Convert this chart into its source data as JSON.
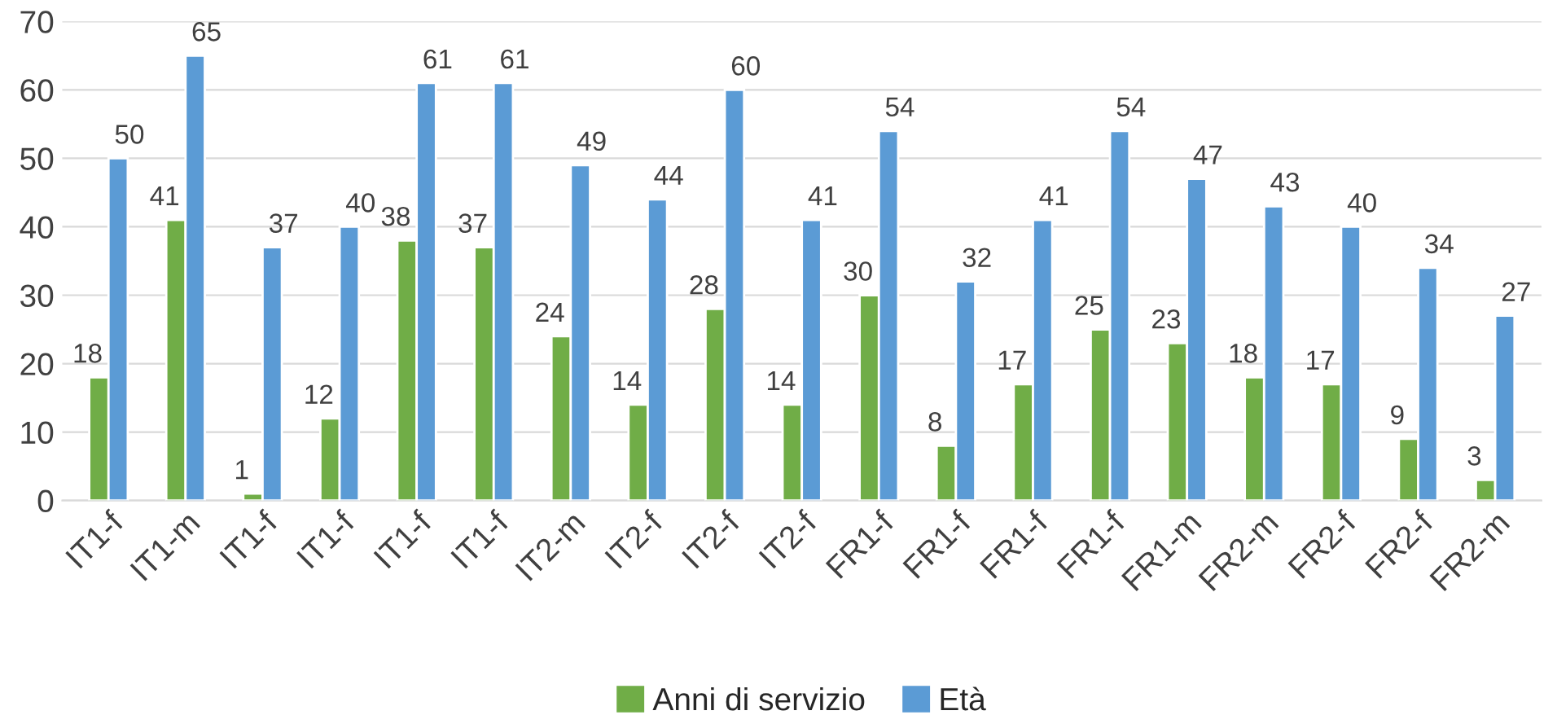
{
  "chart_data": {
    "type": "bar",
    "categories": [
      "IT1-f",
      "IT1-m",
      "IT1-f",
      "IT1-f",
      "IT1-f",
      "IT1-f",
      "IT2-m",
      "IT2-f",
      "IT2-f",
      "IT2-f",
      "FR1-f",
      "FR1-f",
      "FR1-f",
      "FR1-f",
      "FR1-m",
      "FR2-m",
      "FR2-f",
      "FR2-f",
      "FR2-m"
    ],
    "series": [
      {
        "name": "Anni di servizio",
        "color": "#70ad47",
        "values": [
          18,
          41,
          1,
          12,
          38,
          37,
          24,
          14,
          28,
          14,
          30,
          8,
          17,
          25,
          23,
          18,
          17,
          9,
          3
        ]
      },
      {
        "name": "Età",
        "color": "#5b9bd5",
        "values": [
          50,
          65,
          37,
          40,
          61,
          61,
          49,
          44,
          60,
          41,
          54,
          32,
          41,
          54,
          47,
          43,
          40,
          34,
          27
        ]
      }
    ],
    "ylim": [
      0,
      70
    ],
    "yticks": [
      0,
      10,
      20,
      30,
      40,
      50,
      60,
      70
    ],
    "grid": "y",
    "legend": "bottom",
    "data_labels": true
  }
}
